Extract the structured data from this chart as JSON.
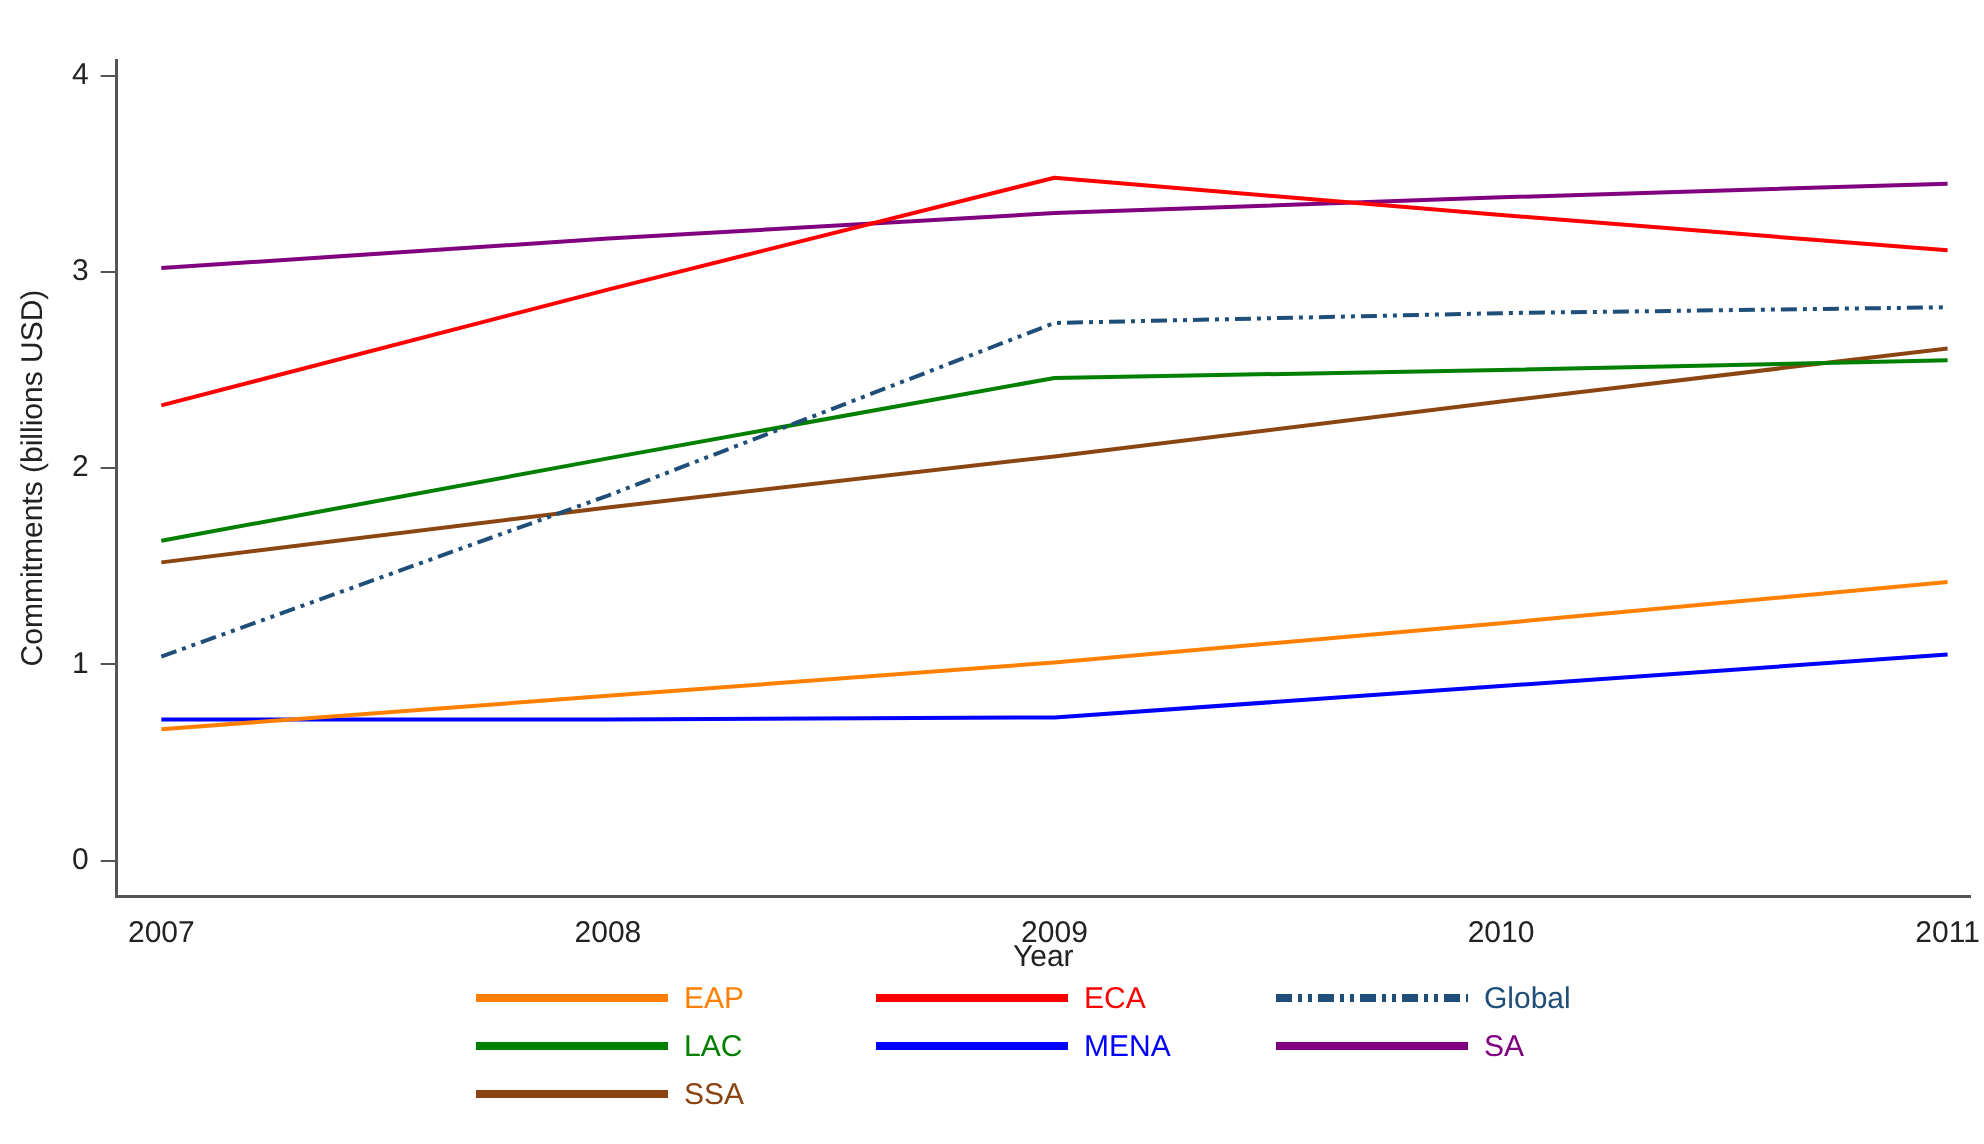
{
  "chart_data": {
    "type": "line",
    "xlabel": "Year",
    "ylabel": "Commitments (billions USD)",
    "x": [
      2007,
      2008,
      2009,
      2010,
      2011
    ],
    "xlim": [
      2006.9,
      2011.05
    ],
    "xticks": [
      2007,
      2008,
      2009,
      2010,
      2011
    ],
    "ylim": [
      -0.18,
      4.08
    ],
    "yticks": [
      0,
      1,
      2,
      3,
      4
    ],
    "grid": false,
    "legend": "bottom",
    "marker": "none",
    "series": [
      {
        "name": "EAP",
        "color": "#ff8000",
        "values": [
          0.67,
          0.84,
          1.01,
          1.21,
          1.42
        ]
      },
      {
        "name": "ECA",
        "color": "#ff0000",
        "values": [
          2.32,
          2.91,
          3.48,
          3.29,
          3.11
        ]
      },
      {
        "name": "Global",
        "color": "#1f4e79",
        "line_style": "dashed",
        "values": [
          1.04,
          1.86,
          2.74,
          2.79,
          2.82
        ]
      },
      {
        "name": "LAC",
        "color": "#008000",
        "values": [
          1.63,
          2.05,
          2.46,
          2.5,
          2.55
        ]
      },
      {
        "name": "MENA",
        "color": "#0000ff",
        "values": [
          0.72,
          0.72,
          0.73,
          0.89,
          1.05
        ]
      },
      {
        "name": "SA",
        "color": "#800080",
        "values": [
          3.02,
          3.17,
          3.3,
          3.38,
          3.45
        ]
      },
      {
        "name": "SSA",
        "color": "#8b4513",
        "values": [
          1.52,
          1.8,
          2.06,
          2.34,
          2.61
        ]
      }
    ]
  }
}
